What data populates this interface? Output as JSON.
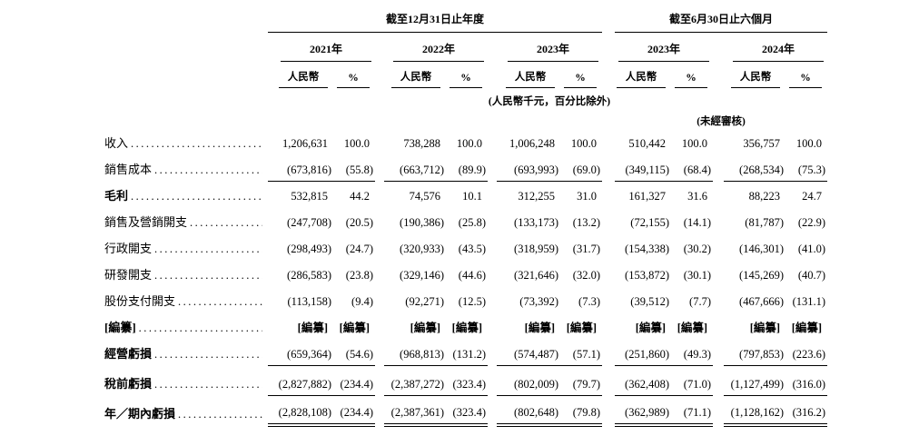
{
  "page": {
    "background": "#ffffff",
    "text_color": "#000000"
  },
  "header": {
    "annual": {
      "title": "截至12月31日止年度",
      "years": [
        "2021年",
        "2022年",
        "2023年"
      ]
    },
    "interim": {
      "title": "截至6月30日止六個月",
      "years": [
        "2023年",
        "2024年"
      ]
    },
    "currency_label": "人民幣",
    "percent_label": "%",
    "unit_note": "(人民幣千元，百分比除外)",
    "unaudited_note": "(未經審核)"
  },
  "table": {
    "rows": [
      {
        "label": "收入",
        "label_bold": false,
        "values_bold": false,
        "rule": "none",
        "spacer_before": false,
        "values": [
          "1,206,631",
          "100.0",
          "738,288",
          "100.0",
          "1,006,248",
          "100.0",
          "510,442",
          "100.0",
          "356,757",
          "100.0"
        ]
      },
      {
        "label": "銷售成本",
        "label_bold": false,
        "values_bold": false,
        "rule": "single",
        "spacer_before": false,
        "values": [
          "(673,816)",
          "(55.8)",
          "(663,712)",
          "(89.9)",
          "(693,993)",
          "(69.0)",
          "(349,115)",
          "(68.4)",
          "(268,534)",
          "(75.3)"
        ]
      },
      {
        "label": "毛利",
        "label_bold": true,
        "values_bold": false,
        "rule": "none",
        "spacer_before": false,
        "values": [
          "532,815",
          "44.2",
          "74,576",
          "10.1",
          "312,255",
          "31.0",
          "161,327",
          "31.6",
          "88,223",
          "24.7"
        ]
      },
      {
        "label": "銷售及營銷開支",
        "label_bold": false,
        "values_bold": false,
        "rule": "none",
        "spacer_before": false,
        "values": [
          "(247,708)",
          "(20.5)",
          "(190,386)",
          "(25.8)",
          "(133,173)",
          "(13.2)",
          "(72,155)",
          "(14.1)",
          "(81,787)",
          "(22.9)"
        ]
      },
      {
        "label": "行政開支",
        "label_bold": false,
        "values_bold": false,
        "rule": "none",
        "spacer_before": false,
        "values": [
          "(298,493)",
          "(24.7)",
          "(320,933)",
          "(43.5)",
          "(318,959)",
          "(31.7)",
          "(154,338)",
          "(30.2)",
          "(146,301)",
          "(41.0)"
        ]
      },
      {
        "label": "研發開支",
        "label_bold": false,
        "values_bold": false,
        "rule": "none",
        "spacer_before": false,
        "values": [
          "(286,583)",
          "(23.8)",
          "(329,146)",
          "(44.6)",
          "(321,646)",
          "(32.0)",
          "(153,872)",
          "(30.1)",
          "(145,269)",
          "(40.7)"
        ]
      },
      {
        "label": "股份支付開支",
        "label_bold": false,
        "values_bold": false,
        "rule": "none",
        "spacer_before": false,
        "values": [
          "(113,158)",
          "(9.4)",
          "(92,271)",
          "(12.5)",
          "(73,392)",
          "(7.3)",
          "(39,512)",
          "(7.7)",
          "(467,666)",
          "(131.1)"
        ]
      },
      {
        "label": "[編纂]",
        "label_bold": true,
        "values_bold": true,
        "rule": "none",
        "spacer_before": false,
        "values": [
          "[編纂]",
          "[編纂]",
          "[編纂]",
          "[編纂]",
          "[編纂]",
          "[編纂]",
          "[編纂]",
          "[編纂]",
          "[編纂]",
          "[編纂]"
        ]
      },
      {
        "label": "經營虧損",
        "label_bold": true,
        "values_bold": false,
        "rule": "single",
        "spacer_before": false,
        "values": [
          "(659,364)",
          "(54.6)",
          "(968,813)",
          "(131.2)",
          "(574,487)",
          "(57.1)",
          "(251,860)",
          "(49.3)",
          "(797,853)",
          "(223.6)"
        ]
      },
      {
        "label": "稅前虧損",
        "label_bold": true,
        "values_bold": false,
        "rule": "single",
        "spacer_before": true,
        "values": [
          "(2,827,882)",
          "(234.4)",
          "(2,387,272)",
          "(323.4)",
          "(802,009)",
          "(79.7)",
          "(362,408)",
          "(71.0)",
          "(1,127,499)",
          "(316.0)"
        ]
      },
      {
        "label": "年／期內虧損",
        "label_bold": true,
        "values_bold": false,
        "rule": "double",
        "spacer_before": true,
        "values": [
          "(2,828,108)",
          "(234.4)",
          "(2,387,361)",
          "(323.4)",
          "(802,648)",
          "(79.8)",
          "(362,989)",
          "(71.1)",
          "(1,128,162)",
          "(316.2)"
        ]
      }
    ]
  }
}
